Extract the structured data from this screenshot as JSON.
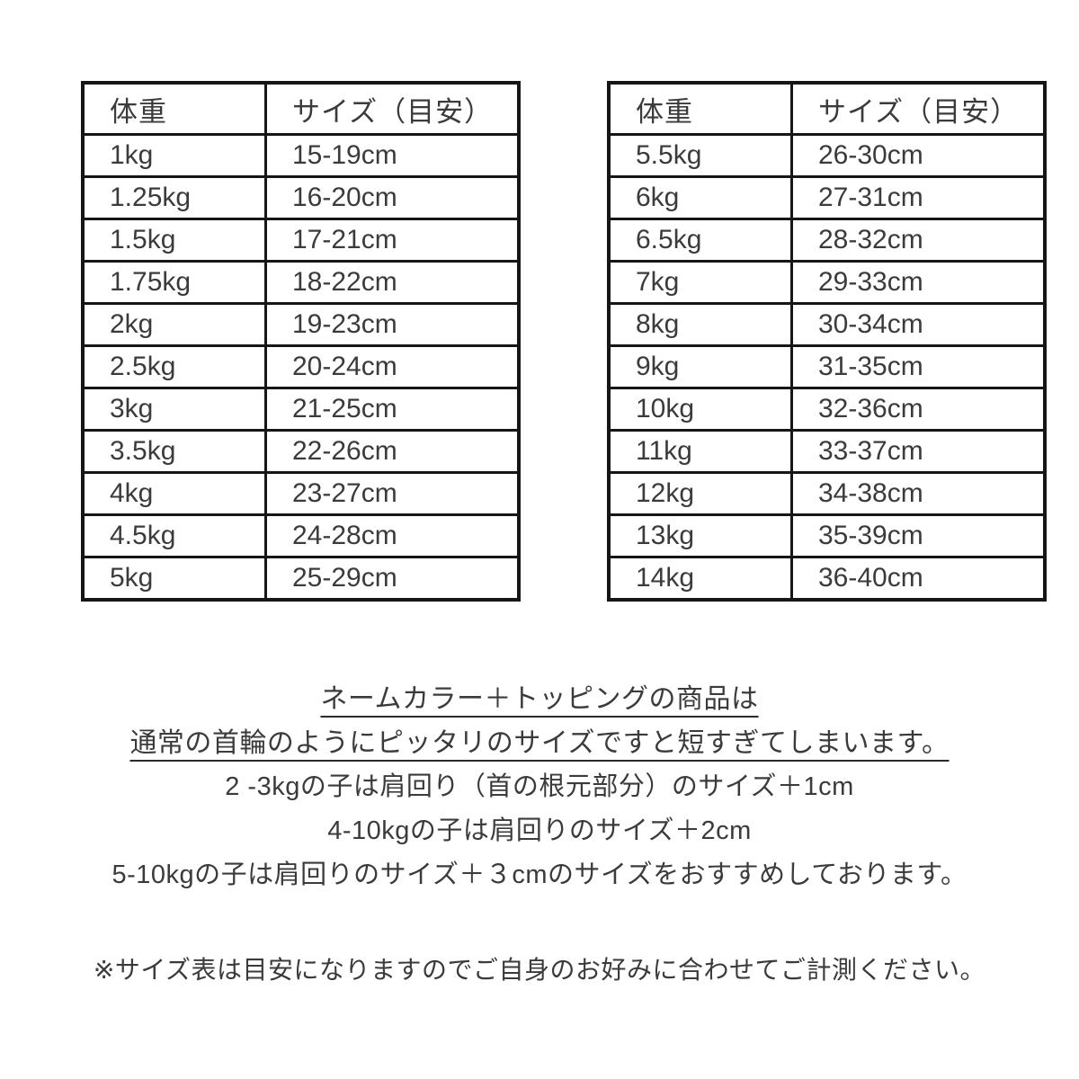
{
  "tables": [
    {
      "name": "size-table-small",
      "headers": [
        "体重",
        "サイズ（目安）"
      ],
      "rows": [
        [
          "1kg",
          "15-19cm"
        ],
        [
          "1.25kg",
          "16-20cm"
        ],
        [
          "1.5kg",
          "17-21cm"
        ],
        [
          "1.75kg",
          "18-22cm"
        ],
        [
          "2kg",
          "19-23cm"
        ],
        [
          "2.5kg",
          "20-24cm"
        ],
        [
          "3kg",
          "21-25cm"
        ],
        [
          "3.5kg",
          "22-26cm"
        ],
        [
          "4kg",
          "23-27cm"
        ],
        [
          "4.5kg",
          "24-28cm"
        ],
        [
          "5kg",
          "25-29cm"
        ]
      ]
    },
    {
      "name": "size-table-large",
      "headers": [
        "体重",
        "サイズ（目安）"
      ],
      "rows": [
        [
          "5.5kg",
          "26-30cm"
        ],
        [
          "6kg",
          "27-31cm"
        ],
        [
          "6.5kg",
          "28-32cm"
        ],
        [
          "7kg",
          "29-33cm"
        ],
        [
          "8kg",
          "30-34cm"
        ],
        [
          "9kg",
          "31-35cm"
        ],
        [
          "10kg",
          "32-36cm"
        ],
        [
          "11kg",
          "33-37cm"
        ],
        [
          "12kg",
          "34-38cm"
        ],
        [
          "13kg",
          "35-39cm"
        ],
        [
          "14kg",
          "36-40cm"
        ]
      ]
    }
  ],
  "notes": {
    "underlined": [
      "ネームカラー＋トッピングの商品は",
      "通常の首輪のようにピッタリのサイズですと短すぎてしまいます。"
    ],
    "lines": [
      "2 -3kgの子は肩回り（首の根元部分）のサイズ＋1cm",
      "4-10kgの子は肩回りのサイズ＋2cm",
      "5-10kgの子は肩回りのサイズ＋３cmのサイズをおすすめしております。"
    ],
    "footnote": "※サイズ表は目安になりますのでご自身のお好みに合わせてご計測ください。"
  },
  "colors": {
    "border": "#161616",
    "text": "#3b3b3b",
    "background": "#ffffff"
  }
}
